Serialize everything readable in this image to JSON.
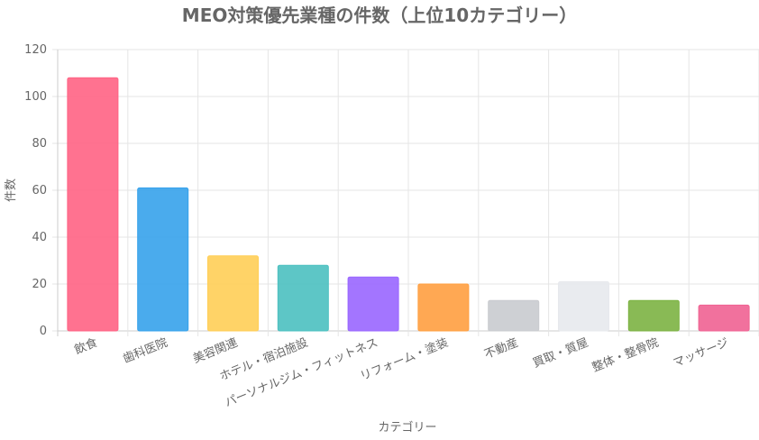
{
  "chart_data": {
    "type": "bar",
    "title": "MEO対策優先業種の件数（上位10カテゴリー）",
    "xlabel": "カテゴリー",
    "ylabel": "件数",
    "ylim": [
      0,
      120
    ],
    "yticks": [
      0,
      20,
      40,
      60,
      80,
      100,
      120
    ],
    "grid": true,
    "legend": "none",
    "categories": [
      "飲食",
      "歯科医院",
      "美容関連",
      "ホテル・宿泊施設",
      "パーソナルジム・フィットネス",
      "リフォーム・塗装",
      "不動産",
      "買取・質屋",
      "整体・整骨院",
      "マッサージ"
    ],
    "values": [
      108,
      61,
      32,
      28,
      23,
      20,
      13,
      21,
      13,
      11
    ],
    "colors": [
      "#FF6384",
      "#36A2EB",
      "#FFCE56",
      "#4BC0C0",
      "#9966FF",
      "#FF9F40",
      "#C9CBCF",
      "#E7E9ED",
      "#7CB342",
      "#F06292"
    ]
  }
}
